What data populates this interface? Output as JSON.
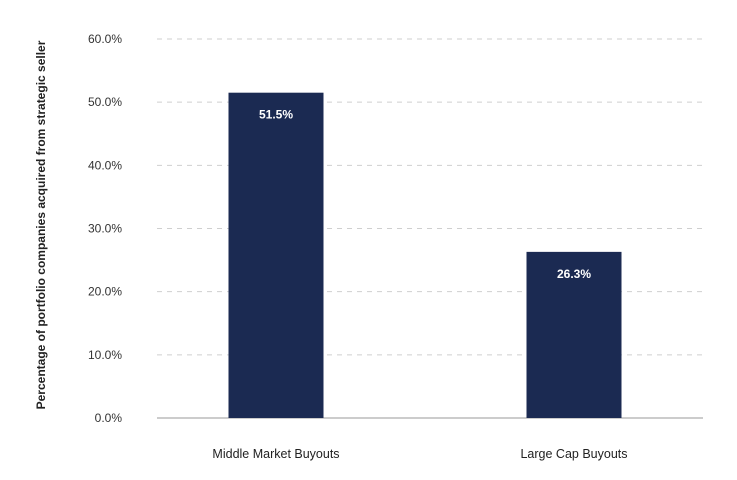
{
  "chart_data": {
    "type": "bar",
    "title": "",
    "xlabel": "",
    "ylabel": "Percentage of portfolio companies acquired from strategic seller",
    "categories": [
      "Middle Market Buyouts",
      "Large Cap Buyouts"
    ],
    "values": [
      51.5,
      26.3
    ],
    "value_labels": [
      "51.5%",
      "26.3%"
    ],
    "ylim": [
      0,
      60
    ],
    "yticks": [
      0,
      10,
      20,
      30,
      40,
      50,
      60
    ],
    "ytick_labels": [
      "0.0%",
      "10.0%",
      "20.0%",
      "30.0%",
      "40.0%",
      "50.0%",
      "60.0%"
    ],
    "grid": true,
    "colors": {
      "bar": "#1b2a52",
      "grid": "#cfcfcf",
      "axis": "#999999"
    }
  }
}
